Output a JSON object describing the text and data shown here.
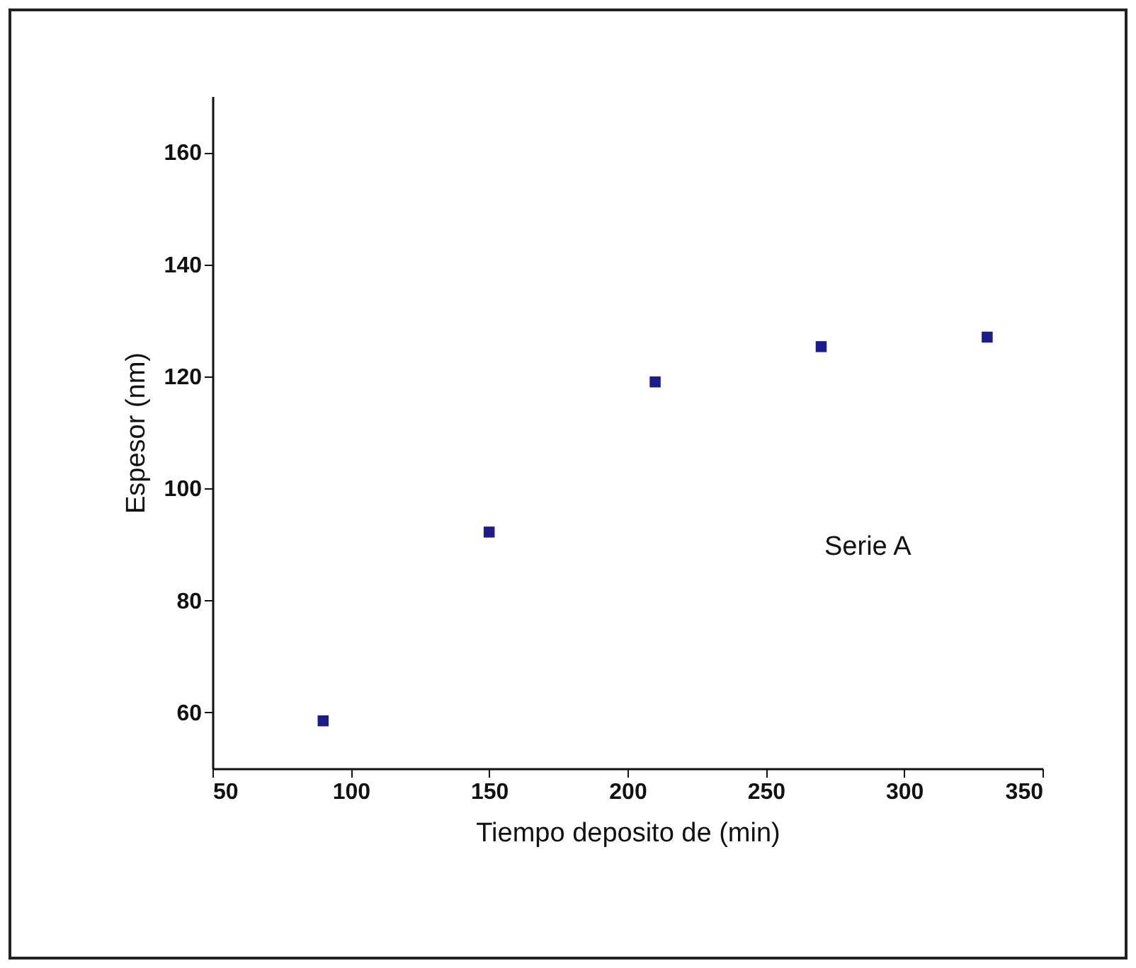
{
  "chart_data": {
    "type": "scatter",
    "xlabel": "Tiempo deposito  de (min)",
    "ylabel": "Espesor (nm)",
    "annotations": [
      "Serie A"
    ],
    "x": [
      90,
      150,
      210,
      270,
      330
    ],
    "series": [
      {
        "color": "#1c1c8c",
        "values": [
          58.5,
          92.2,
          119,
          125.3,
          127
        ]
      }
    ],
    "xlim": [
      50,
      350
    ],
    "xticks": [
      50,
      100,
      150,
      200,
      250,
      300,
      350
    ],
    "ylim": [
      50,
      170
    ],
    "yticks": [
      60,
      80,
      100,
      120,
      140,
      160
    ],
    "marker": "square",
    "grid": false
  }
}
